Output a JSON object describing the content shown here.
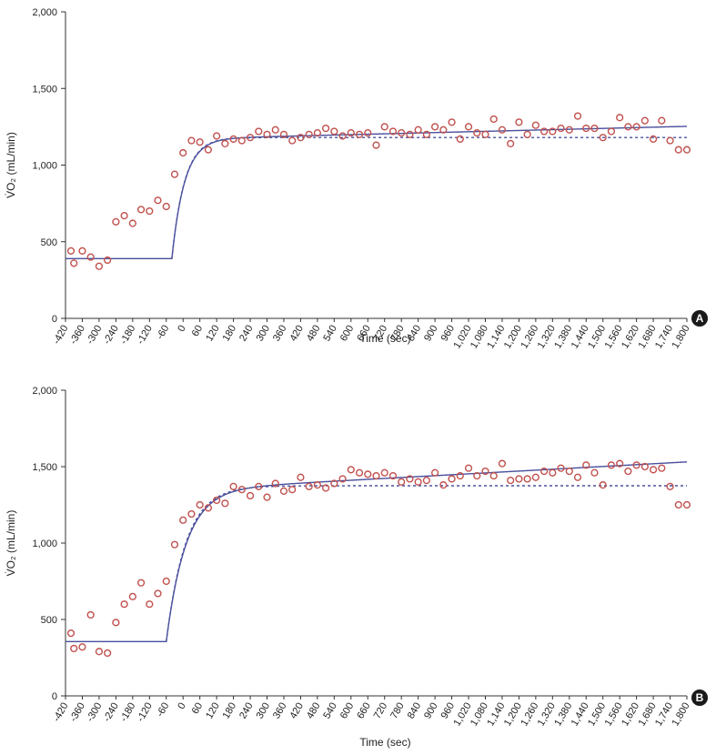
{
  "chart_data": [
    {
      "type": "scatter",
      "panel_label": "A",
      "xlabel": "Time (sec)",
      "ylabel": "V̇O₂ (mL/min)",
      "xlim": [
        -420,
        1800
      ],
      "ylim": [
        0,
        2000
      ],
      "xticks": [
        -420,
        -360,
        -300,
        -240,
        -180,
        -120,
        -60,
        0,
        60,
        120,
        180,
        240,
        300,
        360,
        420,
        480,
        540,
        600,
        660,
        720,
        780,
        840,
        900,
        960,
        1020,
        1080,
        1140,
        1200,
        1260,
        1320,
        1380,
        1440,
        1500,
        1560,
        1620,
        1680,
        1740,
        1800
      ],
      "xtick_labels": [
        "-420",
        "-360",
        "-300",
        "-240",
        "-180",
        "-120",
        "-60",
        "0",
        "60",
        "120",
        "180",
        "240",
        "300",
        "360",
        "420",
        "480",
        "540",
        "600",
        "660",
        "720",
        "780",
        "840",
        "900",
        "960",
        "1,020",
        "1,080",
        "1,140",
        "1,200",
        "1,260",
        "1,320",
        "1,380",
        "1,440",
        "1,500",
        "1,560",
        "1,620",
        "1,680",
        "1,740",
        "1,800"
      ],
      "yticks": [
        0,
        500,
        1000,
        1500,
        2000
      ],
      "ytick_labels": [
        "0",
        "500",
        "1,000",
        "1,500",
        "2,000"
      ],
      "grid": false,
      "colors": {
        "points": "#c0504d",
        "model": "#4a4f9c"
      },
      "series": [
        {
          "kind": "points",
          "x": [
            -420,
            -390,
            -360,
            -330,
            -300,
            -270,
            -240,
            -210,
            -180,
            -150,
            -120,
            -90,
            -60,
            -30,
            0,
            30,
            60,
            90,
            120,
            150,
            180,
            210,
            240,
            270,
            300,
            330,
            360,
            390,
            420,
            450,
            480,
            510,
            540,
            570,
            600,
            630,
            660,
            690,
            720,
            750,
            780,
            810,
            840,
            870,
            900,
            930,
            960,
            990,
            1020,
            1050,
            1080,
            1110,
            1140,
            1170,
            1200,
            1230,
            1260,
            1290,
            1320,
            1350,
            1380,
            1410,
            1440,
            1470,
            1500,
            1530,
            1560,
            1590,
            1620,
            1650,
            1680,
            1710,
            1740,
            1770,
            1800
          ],
          "y": [
            440,
            360,
            440,
            400,
            340,
            380,
            630,
            670,
            620,
            710,
            700,
            770,
            730,
            940,
            1080,
            1160,
            1150,
            1100,
            1190,
            1140,
            1170,
            1160,
            1180,
            1220,
            1200,
            1230,
            1200,
            1160,
            1180,
            1200,
            1210,
            1240,
            1220,
            1190,
            1210,
            1200,
            1210,
            1130,
            1250,
            1220,
            1210,
            1200,
            1230,
            1200,
            1250,
            1230,
            1280,
            1170,
            1250,
            1210,
            1200,
            1300,
            1230,
            1140,
            1280,
            1200,
            1260,
            1220,
            1220,
            1240,
            1230,
            1320,
            1240,
            1240,
            1180,
            1220,
            1310,
            1250,
            1250,
            1290,
            1170,
            1290,
            1160,
            1100,
            1100
          ]
        },
        {
          "kind": "line",
          "style": "solid",
          "model": {
            "baseline": 390,
            "delay": -40,
            "amplitude": 780,
            "tau": 45,
            "slope": 0.045
          }
        },
        {
          "kind": "line",
          "style": "dashed",
          "model": {
            "baseline": 390,
            "delay": -40,
            "amplitude": 790,
            "tau": 45,
            "slope": 0
          }
        }
      ]
    },
    {
      "type": "scatter",
      "panel_label": "B",
      "xlabel": "Time (sec)",
      "ylabel": "V̇O₂ (mL/min)",
      "xlim": [
        -420,
        1800
      ],
      "ylim": [
        0,
        2000
      ],
      "xticks": [
        -420,
        -360,
        -300,
        -240,
        -180,
        -120,
        -60,
        0,
        60,
        120,
        180,
        240,
        300,
        360,
        420,
        480,
        540,
        600,
        660,
        720,
        780,
        840,
        900,
        960,
        1020,
        1080,
        1140,
        1200,
        1260,
        1320,
        1380,
        1440,
        1500,
        1560,
        1620,
        1680,
        1740,
        1800
      ],
      "xtick_labels": [
        "-420",
        "-360",
        "-300",
        "-240",
        "-180",
        "-120",
        "-60",
        "0",
        "60",
        "120",
        "180",
        "240",
        "300",
        "360",
        "420",
        "480",
        "540",
        "600",
        "660",
        "720",
        "780",
        "840",
        "900",
        "960",
        "1,020",
        "1,080",
        "1,140",
        "1,200",
        "1,260",
        "1,320",
        "1,380",
        "1,440",
        "1,500",
        "1,560",
        "1,620",
        "1,680",
        "1,740",
        "1,800"
      ],
      "yticks": [
        0,
        500,
        1000,
        1500,
        2000
      ],
      "ytick_labels": [
        "0",
        "500",
        "1,000",
        "1,500",
        "2,000"
      ],
      "grid": false,
      "colors": {
        "points": "#c0504d",
        "model": "#4a4f9c"
      },
      "series": [
        {
          "kind": "points",
          "x": [
            -420,
            -390,
            -360,
            -330,
            -300,
            -270,
            -240,
            -210,
            -180,
            -150,
            -120,
            -90,
            -60,
            -30,
            0,
            30,
            60,
            90,
            120,
            150,
            180,
            210,
            240,
            270,
            300,
            330,
            360,
            390,
            420,
            450,
            480,
            510,
            540,
            570,
            600,
            630,
            660,
            690,
            720,
            750,
            780,
            810,
            840,
            870,
            900,
            930,
            960,
            990,
            1020,
            1050,
            1080,
            1110,
            1140,
            1170,
            1200,
            1230,
            1260,
            1290,
            1320,
            1350,
            1380,
            1410,
            1440,
            1470,
            1500,
            1530,
            1560,
            1590,
            1620,
            1650,
            1680,
            1710,
            1740,
            1770,
            1800
          ],
          "y": [
            410,
            310,
            320,
            530,
            290,
            280,
            480,
            600,
            650,
            740,
            600,
            670,
            750,
            990,
            1150,
            1190,
            1250,
            1230,
            1280,
            1260,
            1370,
            1350,
            1310,
            1370,
            1300,
            1390,
            1340,
            1350,
            1430,
            1370,
            1380,
            1360,
            1390,
            1420,
            1480,
            1460,
            1450,
            1440,
            1460,
            1440,
            1400,
            1420,
            1400,
            1410,
            1460,
            1380,
            1420,
            1440,
            1490,
            1440,
            1470,
            1440,
            1520,
            1410,
            1420,
            1420,
            1430,
            1470,
            1460,
            1490,
            1470,
            1430,
            1510,
            1460,
            1380,
            1510,
            1520,
            1470,
            1510,
            1500,
            1480,
            1490,
            1370,
            1250,
            1250
          ]
        },
        {
          "kind": "line",
          "style": "solid",
          "model": {
            "baseline": 355,
            "delay": -60,
            "amplitude": 990,
            "tau": 70,
            "slope": 0.1
          }
        },
        {
          "kind": "line",
          "style": "dashed",
          "model": {
            "baseline": 355,
            "delay": -60,
            "amplitude": 1020,
            "tau": 70,
            "slope": 0
          }
        }
      ]
    }
  ]
}
